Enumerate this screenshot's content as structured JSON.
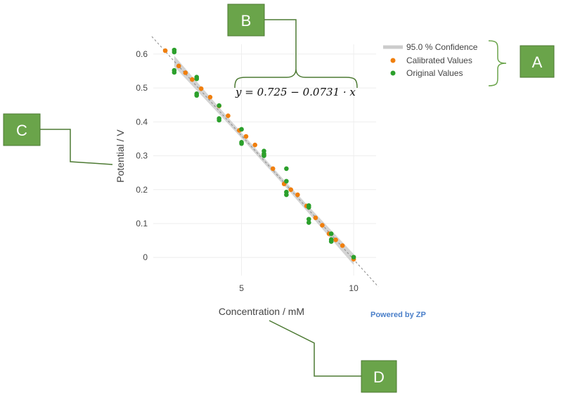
{
  "chart_data": {
    "type": "scatter",
    "xlabel": "Concentration / mM",
    "ylabel": "Potential / V",
    "xlim": [
      0.5,
      11.0
    ],
    "ylim": [
      -0.07,
      0.66
    ],
    "x_ticks": [
      5,
      10
    ],
    "y_ticks": [
      0,
      0.1,
      0.2,
      0.3,
      0.4,
      0.5,
      0.6
    ],
    "grid": true,
    "legend_position": "top-right",
    "equation": "y = 0.725 − 0.0731 · x",
    "fit": {
      "intercept": 0.725,
      "slope": -0.0731
    },
    "series": [
      {
        "name": "95.0 % Confidence",
        "kind": "band",
        "color": "#cccccc",
        "x": [
          2,
          3,
          4,
          5,
          6,
          7,
          8,
          9,
          10
        ],
        "y": [
          0.579,
          0.506,
          0.433,
          0.36,
          0.286,
          0.213,
          0.14,
          0.067,
          -0.006
        ],
        "width": [
          0.016,
          0.013,
          0.01,
          0.008,
          0.008,
          0.008,
          0.01,
          0.013,
          0.016
        ]
      },
      {
        "name": "Calibrated Values",
        "kind": "points",
        "color": "#f07f0e",
        "x": [
          1.6,
          2.2,
          2.5,
          2.8,
          3.2,
          3.6,
          4.0,
          4.4,
          4.9,
          5.2,
          5.6,
          6.0,
          6.4,
          6.9,
          7.2,
          7.5,
          7.9,
          8.3,
          8.6,
          8.9,
          9.2,
          9.5,
          10.0
        ],
        "y": [
          0.61,
          0.565,
          0.545,
          0.525,
          0.498,
          0.473,
          0.447,
          0.418,
          0.375,
          0.357,
          0.332,
          0.303,
          0.262,
          0.217,
          0.2,
          0.185,
          0.152,
          0.117,
          0.095,
          0.07,
          0.052,
          0.035,
          -0.005
        ]
      },
      {
        "name": "Original Values",
        "kind": "points",
        "color": "#2ca02c",
        "x": [
          2,
          2,
          2,
          2,
          3,
          3,
          3,
          3,
          4,
          4,
          4,
          5,
          5,
          5,
          6,
          6,
          6,
          7,
          7,
          7,
          7,
          8,
          8,
          8,
          8,
          9,
          9,
          9,
          10
        ],
        "y": [
          0.612,
          0.606,
          0.552,
          0.546,
          0.532,
          0.527,
          0.483,
          0.478,
          0.448,
          0.41,
          0.405,
          0.378,
          0.34,
          0.336,
          0.314,
          0.306,
          0.3,
          0.262,
          0.225,
          0.193,
          0.185,
          0.153,
          0.148,
          0.113,
          0.103,
          0.07,
          0.053,
          0.047,
          0.001
        ]
      }
    ]
  },
  "footer": {
    "powered_by": "Powered by ZP"
  },
  "callouts": [
    {
      "letter": "A"
    },
    {
      "letter": "B"
    },
    {
      "letter": "C"
    },
    {
      "letter": "D"
    }
  ],
  "colors": {
    "callout_fill": "#6aa44a",
    "callout_border": "#4d7a33",
    "callout_line": "#4d7a33"
  }
}
